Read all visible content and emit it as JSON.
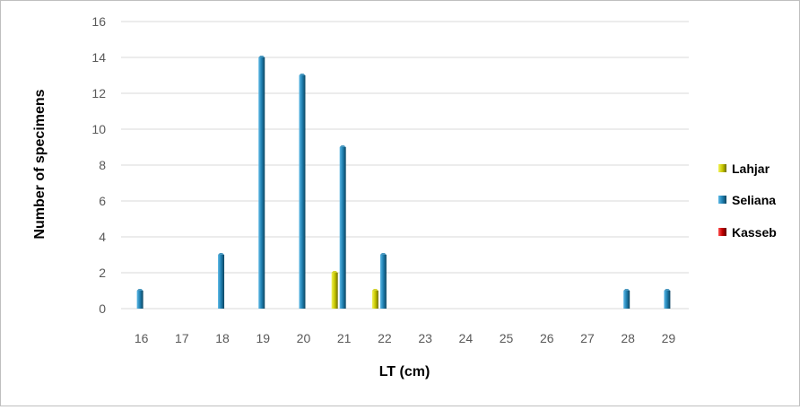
{
  "chart_data": {
    "type": "bar",
    "xlabel": "LT (cm)",
    "ylabel": "Number of specimens",
    "categories": [
      "16",
      "17",
      "18",
      "19",
      "20",
      "21",
      "22",
      "23",
      "24",
      "25",
      "26",
      "27",
      "28",
      "29"
    ],
    "series": [
      {
        "name": "Lahjar",
        "color": "#c8c800",
        "values": [
          0,
          0,
          0,
          0,
          0,
          2,
          1,
          0,
          0,
          0,
          0,
          0,
          0,
          0
        ]
      },
      {
        "name": "Seliana",
        "color": "#1f7fb0",
        "values": [
          1,
          0,
          3,
          14,
          13,
          9,
          3,
          0,
          0,
          0,
          0,
          0,
          1,
          1
        ]
      },
      {
        "name": "Kasseb",
        "color": "#c00000",
        "values": [
          0,
          0,
          0,
          0,
          0,
          0,
          0,
          0,
          0,
          0,
          0,
          0,
          0,
          0
        ]
      }
    ],
    "ylim": [
      0,
      16
    ],
    "yticks": [
      0,
      2,
      4,
      6,
      8,
      10,
      12,
      14,
      16
    ],
    "grid": true,
    "legend": "right"
  }
}
